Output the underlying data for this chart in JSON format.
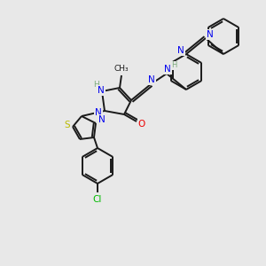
{
  "background_color": "#e8e8e8",
  "bond_color": "#1a1a1a",
  "figsize": [
    3.0,
    3.0
  ],
  "dpi": 100,
  "atom_colors": {
    "N": "#0000ee",
    "O": "#ee0000",
    "S": "#bbbb00",
    "Cl": "#00bb00",
    "H": "#7aaa7a",
    "C": "#1a1a1a"
  },
  "bond_lw": 1.4,
  "double_sep": 2.8,
  "font_size": 7.5
}
